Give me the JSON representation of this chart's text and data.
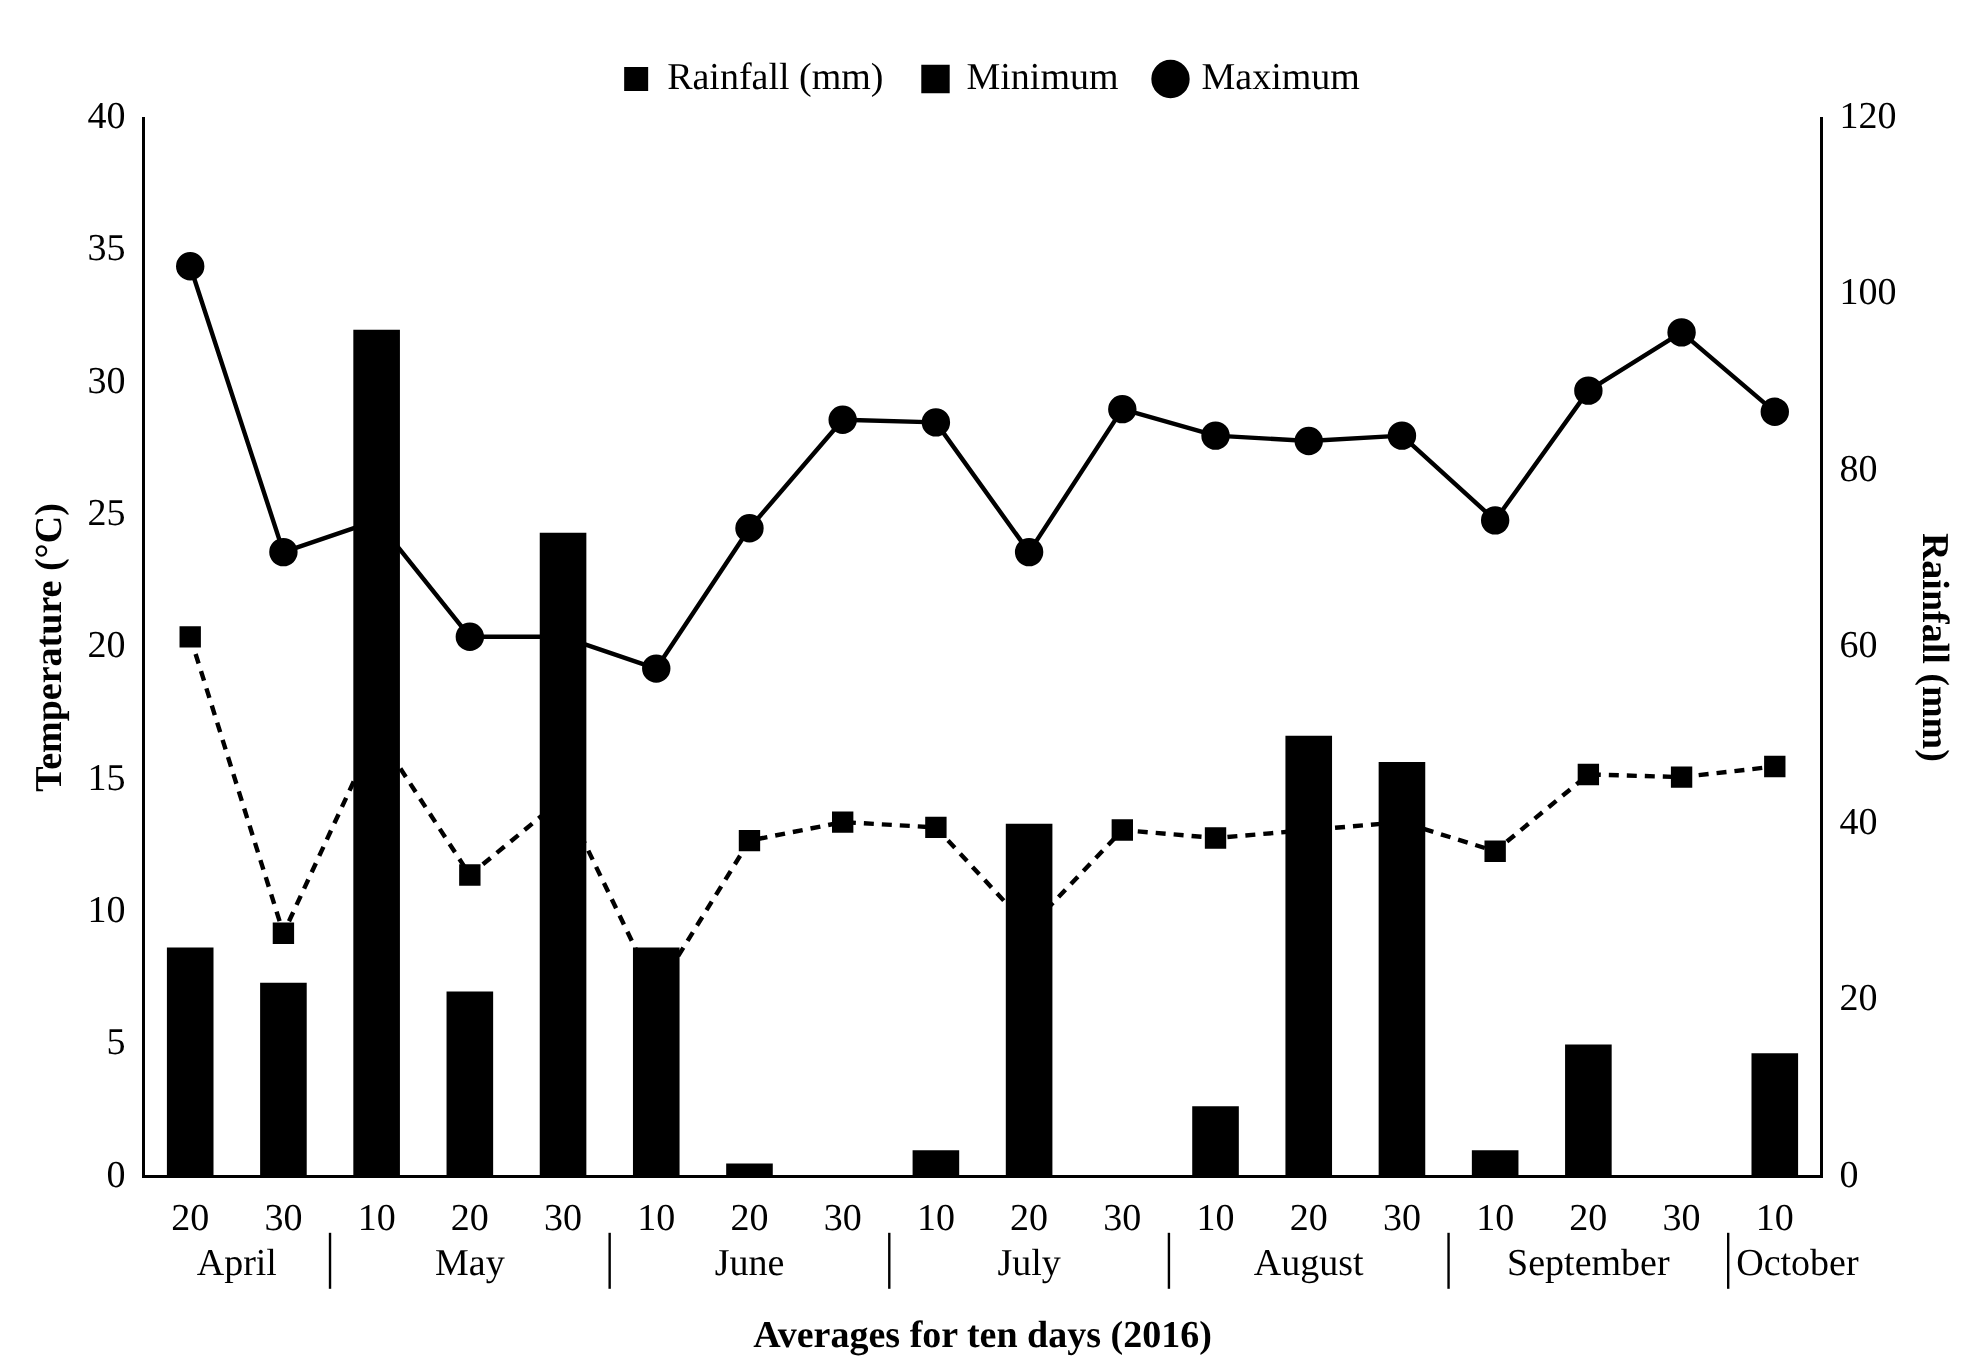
{
  "chart_data": {
    "type": "line",
    "xlabel": "Averages for ten days (2016)",
    "ylabel": "Temperature (°C)",
    "y2label": "Rainfall (mm)",
    "categories": [
      "20",
      "30",
      "10",
      "20",
      "30",
      "10",
      "20",
      "30",
      "10",
      "20",
      "30",
      "10",
      "20",
      "30",
      "10",
      "20",
      "30",
      "10"
    ],
    "annotations": [
      "April",
      "May",
      "June",
      "July",
      "August",
      "September",
      "October"
    ],
    "series": [
      {
        "name": "Rainfall (mm)",
        "type": "bar",
        "axis": "y2",
        "color": "#000000",
        "values": [
          26,
          22,
          96,
          21,
          73,
          26,
          1.5,
          0,
          3,
          40,
          0,
          8,
          50,
          47,
          3,
          15,
          0,
          14
        ]
      },
      {
        "name": "Minimum",
        "color": "#000000",
        "marker": "square",
        "line_style": "dashed",
        "values": [
          20.4,
          9.2,
          16.8,
          11.4,
          14.3,
          7.0,
          12.7,
          13.4,
          13.2,
          9.4,
          13.1,
          12.8,
          13.1,
          13.4,
          12.3,
          15.2,
          15.1,
          15.5
        ]
      },
      {
        "name": "Maximum",
        "color": "#000000",
        "marker": "circle",
        "line_style": "solid",
        "values": [
          34.4,
          23.6,
          24.8,
          20.4,
          20.4,
          19.2,
          24.5,
          28.6,
          28.5,
          23.6,
          29.0,
          28.0,
          27.8,
          28.0,
          24.8,
          29.7,
          31.9,
          28.9
        ]
      }
    ],
    "ylim": [
      0,
      40
    ],
    "yticks": [
      0,
      5,
      10,
      15,
      20,
      25,
      30,
      35,
      40
    ],
    "y2lim": [
      0,
      120
    ],
    "y2ticks": [
      0,
      20,
      40,
      60,
      80,
      100,
      120
    ],
    "grid": false,
    "legend": "top"
  }
}
